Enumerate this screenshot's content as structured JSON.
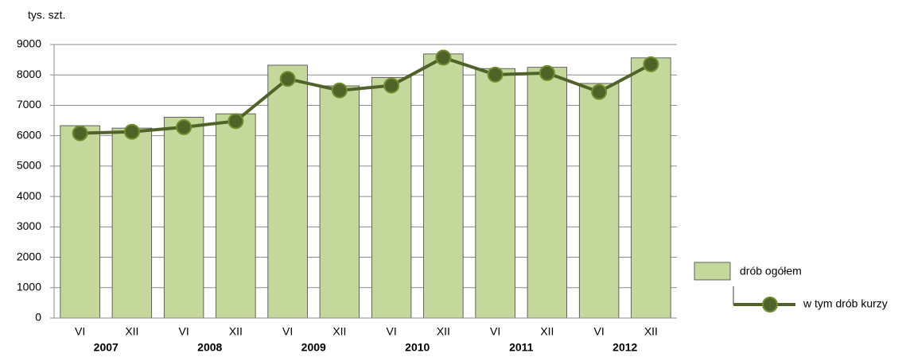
{
  "chart_data": {
    "type": "bar",
    "y_label": "tys. szt.",
    "categories": [
      "VI",
      "XII",
      "VI",
      "XII",
      "VI",
      "XII",
      "VI",
      "XII",
      "VI",
      "XII",
      "VI",
      "XII"
    ],
    "years": [
      "2007",
      "2008",
      "2009",
      "2010",
      "2011",
      "2012"
    ],
    "series": [
      {
        "name": "drób ogółem",
        "type": "bar",
        "color": "#c4d89b",
        "values": [
          6330,
          6250,
          6610,
          6720,
          8320,
          7640,
          7920,
          8690,
          8210,
          8250,
          7720,
          8560
        ]
      },
      {
        "name": "w tym drób kurzy",
        "type": "line",
        "color": "#4f6228",
        "values": [
          6080,
          6130,
          6280,
          6480,
          7870,
          7490,
          7650,
          8570,
          8010,
          8060,
          7440,
          8350
        ]
      }
    ],
    "ylim": [
      0,
      9000
    ],
    "yticks": [
      0,
      1000,
      2000,
      3000,
      4000,
      5000,
      6000,
      7000,
      8000,
      9000
    ],
    "grid": true
  }
}
